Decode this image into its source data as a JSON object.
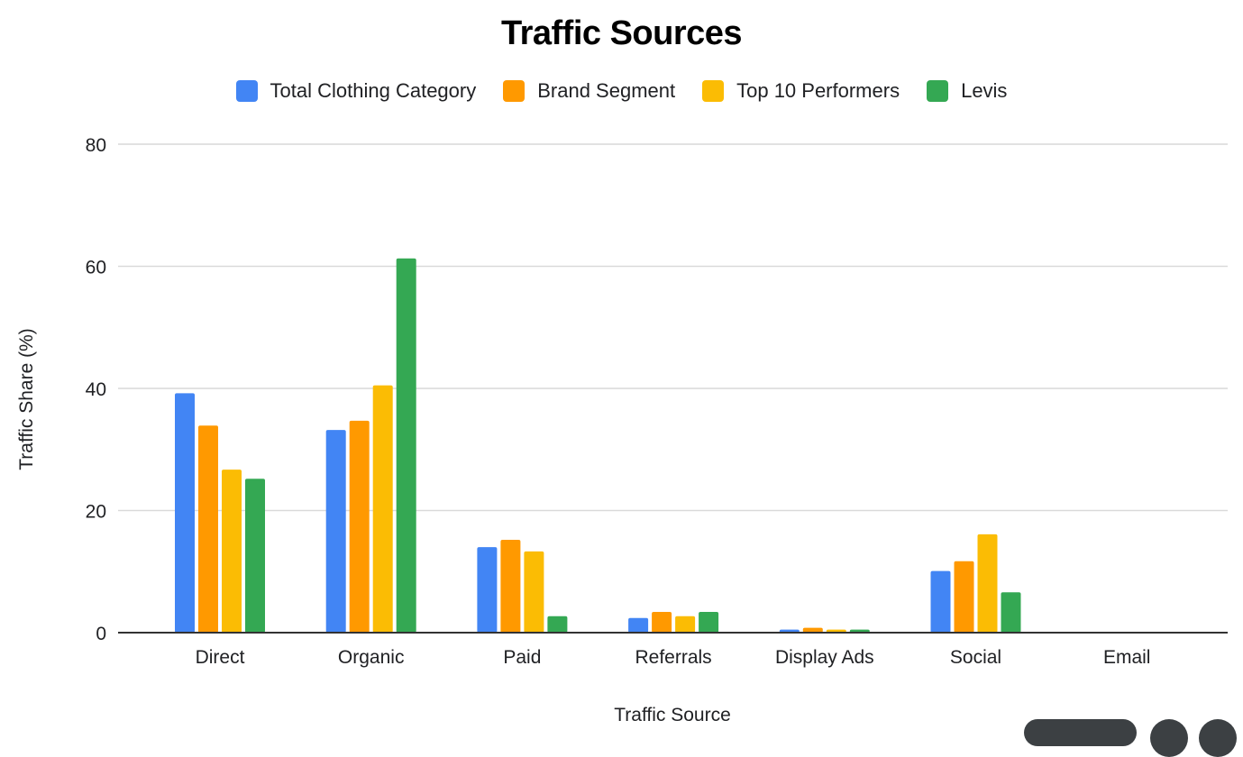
{
  "chart_data": {
    "type": "bar",
    "title": "Traffic Sources",
    "xlabel": "Traffic Source",
    "ylabel": "Traffic Share (%)",
    "ylim": [
      0,
      80
    ],
    "yticks": [
      0,
      20,
      40,
      60,
      80
    ],
    "grid": true,
    "legend_position": "top",
    "categories": [
      "Direct",
      "Organic",
      "Paid",
      "Referrals",
      "Display Ads",
      "Social",
      "Email"
    ],
    "series": [
      {
        "name": "Total Clothing Category",
        "color": "#4285F4",
        "values": [
          39.2,
          33.2,
          14.0,
          2.4,
          0.5,
          10.1,
          0
        ]
      },
      {
        "name": "Brand Segment",
        "color": "#FF9900",
        "values": [
          33.9,
          34.7,
          15.2,
          3.4,
          0.8,
          11.7,
          0
        ]
      },
      {
        "name": "Top 10 Performers",
        "color": "#FBBC04",
        "values": [
          26.7,
          40.5,
          13.3,
          2.7,
          0.5,
          16.1,
          0
        ]
      },
      {
        "name": "Levis",
        "color": "#34A853",
        "values": [
          25.2,
          61.3,
          2.7,
          3.4,
          0.5,
          6.6,
          0
        ]
      }
    ]
  }
}
